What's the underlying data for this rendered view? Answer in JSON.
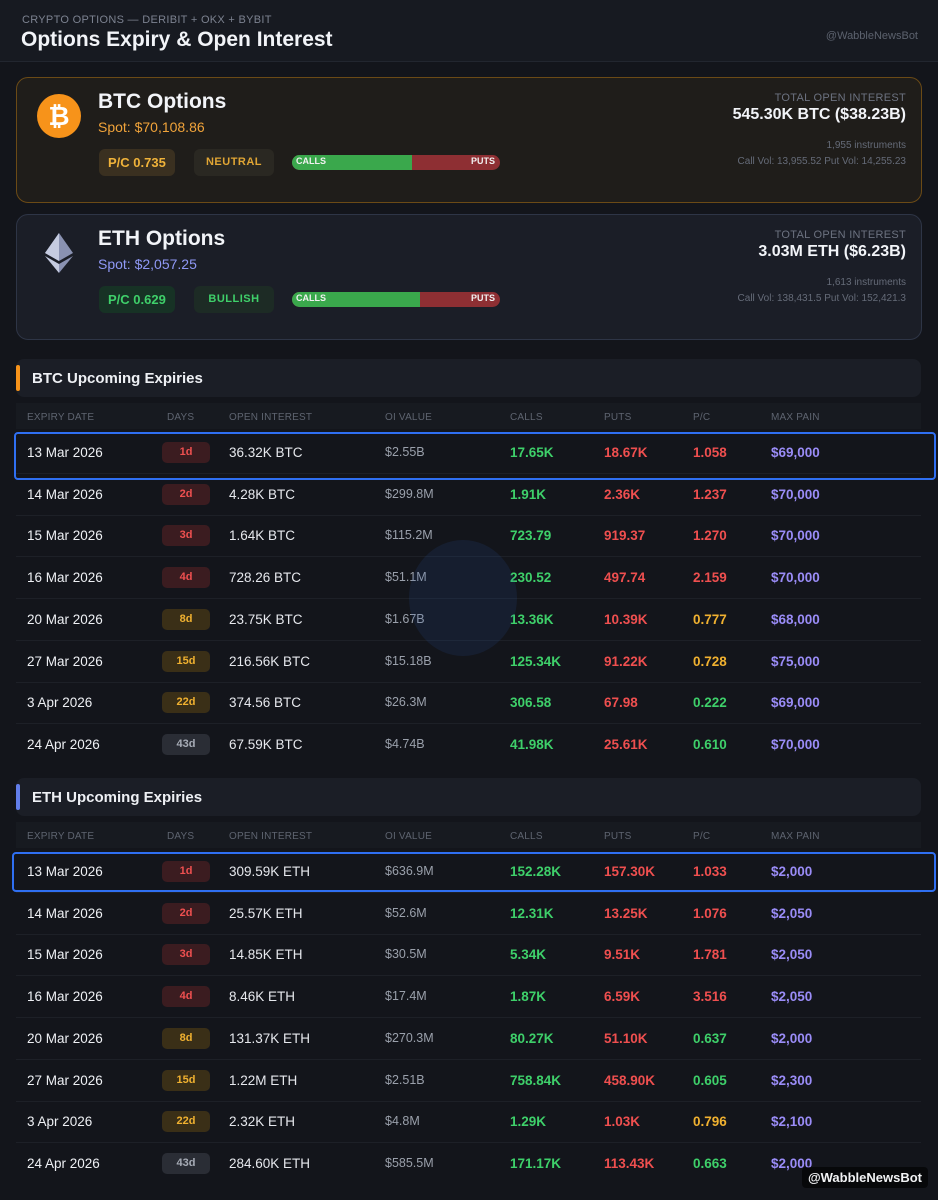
{
  "header": {
    "subtitle": "CRYPTO OPTIONS — DERIBIT + OKX + BYBIT",
    "title": "Options Expiry & Open Interest",
    "handle": "@WabbleNewsBot"
  },
  "btc_card": {
    "icon": "bitcoin-icon",
    "icon_glyph": "₿",
    "name": "BTC Options",
    "spot": "Spot: $70,108.86",
    "pc": "P/C 0.735",
    "sentiment": "NEUTRAL",
    "calls_label": "CALLS",
    "puts_label": "PUTS",
    "calls_share": 0.576,
    "oi_caption": "TOTAL OPEN INTEREST",
    "oi_value": "545.30K BTC ($38.23B)",
    "instruments": "1,955 instruments",
    "volume": "Call Vol: 13,955.52 Put Vol: 14,255.23",
    "accent": "#f7931a"
  },
  "eth_card": {
    "icon": "ethereum-icon",
    "name": "ETH Options",
    "spot": "Spot: $2,057.25",
    "pc": "P/C 0.629",
    "sentiment": "BULLISH",
    "calls_label": "CALLS",
    "puts_label": "PUTS",
    "calls_share": 0.614,
    "oi_caption": "TOTAL OPEN INTEREST",
    "oi_value": "3.03M ETH ($6.23B)",
    "instruments": "1,613 instruments",
    "volume": "Call Vol: 138,431.5 Put Vol: 152,421.3",
    "accent": "#627eea"
  },
  "columns": [
    "EXPIRY DATE",
    "DAYS",
    "OPEN INTEREST",
    "OI VALUE",
    "CALLS",
    "PUTS",
    "P/C",
    "MAX PAIN"
  ],
  "btc_section": {
    "title": "BTC Upcoming Expiries",
    "rows": [
      {
        "date": "13 Mar 2026",
        "days": "1d",
        "oi": "36.32K BTC",
        "oival": "$2.55B",
        "calls": "17.65K",
        "puts": "18.67K",
        "pc": "1.058",
        "mp": "$69,000"
      },
      {
        "date": "14 Mar 2026",
        "days": "2d",
        "oi": "4.28K BTC",
        "oival": "$299.8M",
        "calls": "1.91K",
        "puts": "2.36K",
        "pc": "1.237",
        "mp": "$70,000"
      },
      {
        "date": "15 Mar 2026",
        "days": "3d",
        "oi": "1.64K BTC",
        "oival": "$115.2M",
        "calls": "723.79",
        "puts": "919.37",
        "pc": "1.270",
        "mp": "$70,000"
      },
      {
        "date": "16 Mar 2026",
        "days": "4d",
        "oi": "728.26 BTC",
        "oival": "$51.1M",
        "calls": "230.52",
        "puts": "497.74",
        "pc": "2.159",
        "mp": "$70,000"
      },
      {
        "date": "20 Mar 2026",
        "days": "8d",
        "oi": "23.75K BTC",
        "oival": "$1.67B",
        "calls": "13.36K",
        "puts": "10.39K",
        "pc": "0.777",
        "mp": "$68,000"
      },
      {
        "date": "27 Mar 2026",
        "days": "15d",
        "oi": "216.56K BTC",
        "oival": "$15.18B",
        "calls": "125.34K",
        "puts": "91.22K",
        "pc": "0.728",
        "mp": "$75,000"
      },
      {
        "date": "3 Apr 2026",
        "days": "22d",
        "oi": "374.56 BTC",
        "oival": "$26.3M",
        "calls": "306.58",
        "puts": "67.98",
        "pc": "0.222",
        "mp": "$69,000"
      },
      {
        "date": "24 Apr 2026",
        "days": "43d",
        "oi": "67.59K BTC",
        "oival": "$4.74B",
        "calls": "41.98K",
        "puts": "25.61K",
        "pc": "0.610",
        "mp": "$70,000"
      }
    ]
  },
  "eth_section": {
    "title": "ETH Upcoming Expiries",
    "rows": [
      {
        "date": "13 Mar 2026",
        "days": "1d",
        "oi": "309.59K ETH",
        "oival": "$636.9M",
        "calls": "152.28K",
        "puts": "157.30K",
        "pc": "1.033",
        "mp": "$2,000"
      },
      {
        "date": "14 Mar 2026",
        "days": "2d",
        "oi": "25.57K ETH",
        "oival": "$52.6M",
        "calls": "12.31K",
        "puts": "13.25K",
        "pc": "1.076",
        "mp": "$2,050"
      },
      {
        "date": "15 Mar 2026",
        "days": "3d",
        "oi": "14.85K ETH",
        "oival": "$30.5M",
        "calls": "5.34K",
        "puts": "9.51K",
        "pc": "1.781",
        "mp": "$2,050"
      },
      {
        "date": "16 Mar 2026",
        "days": "4d",
        "oi": "8.46K ETH",
        "oival": "$17.4M",
        "calls": "1.87K",
        "puts": "6.59K",
        "pc": "3.516",
        "mp": "$2,050"
      },
      {
        "date": "20 Mar 2026",
        "days": "8d",
        "oi": "131.37K ETH",
        "oival": "$270.3M",
        "calls": "80.27K",
        "puts": "51.10K",
        "pc": "0.637",
        "mp": "$2,000"
      },
      {
        "date": "27 Mar 2026",
        "days": "15d",
        "oi": "1.22M ETH",
        "oival": "$2.51B",
        "calls": "758.84K",
        "puts": "458.90K",
        "pc": "0.605",
        "mp": "$2,300"
      },
      {
        "date": "3 Apr 2026",
        "days": "22d",
        "oi": "2.32K ETH",
        "oival": "$4.8M",
        "calls": "1.29K",
        "puts": "1.03K",
        "pc": "0.796",
        "mp": "$2,100"
      },
      {
        "date": "24 Apr 2026",
        "days": "43d",
        "oi": "284.60K ETH",
        "oival": "$585.5M",
        "calls": "171.17K",
        "puts": "113.43K",
        "pc": "0.663",
        "mp": "$2,000"
      }
    ]
  },
  "footer_handle": "@WabbleNewsBot"
}
